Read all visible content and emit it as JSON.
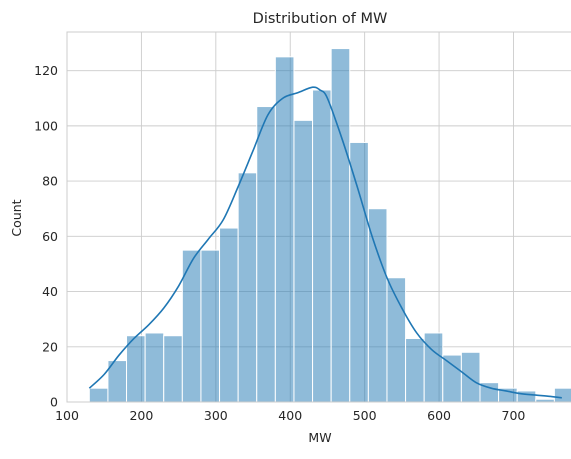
{
  "chart_data": {
    "type": "bar",
    "title": "Distribution of MW",
    "xlabel": "MW",
    "ylabel": "Count",
    "xlim": [
      100,
      780
    ],
    "ylim": [
      0,
      134
    ],
    "grid": true,
    "xticks": [
      100,
      200,
      300,
      400,
      500,
      600,
      700
    ],
    "yticks": [
      0,
      20,
      40,
      60,
      80,
      100,
      120
    ],
    "bin_start": 130,
    "bin_width": 25,
    "values": [
      5,
      15,
      24,
      25,
      24,
      55,
      55,
      63,
      83,
      107,
      125,
      102,
      113,
      128,
      94,
      70,
      45,
      23,
      25,
      17,
      18,
      7,
      5,
      4,
      1,
      5,
      1
    ],
    "kde": {
      "x": [
        130,
        150,
        170,
        190,
        210,
        230,
        250,
        270,
        290,
        310,
        330,
        350,
        370,
        390,
        410,
        430,
        440,
        450,
        470,
        490,
        510,
        530,
        550,
        570,
        590,
        610,
        630,
        650,
        670,
        690,
        710,
        730,
        750,
        765
      ],
      "y": [
        5,
        10,
        17,
        23,
        28,
        34,
        42,
        52,
        59,
        66,
        78,
        91,
        104,
        110,
        112,
        114,
        113,
        110,
        95,
        78,
        60,
        45,
        34,
        25,
        19,
        15,
        11,
        7,
        5,
        4,
        3,
        2.5,
        2,
        1.5
      ]
    },
    "colors": {
      "bar": "#1f77b4",
      "grid": "#cccccc",
      "edge": "#ffffff"
    }
  }
}
